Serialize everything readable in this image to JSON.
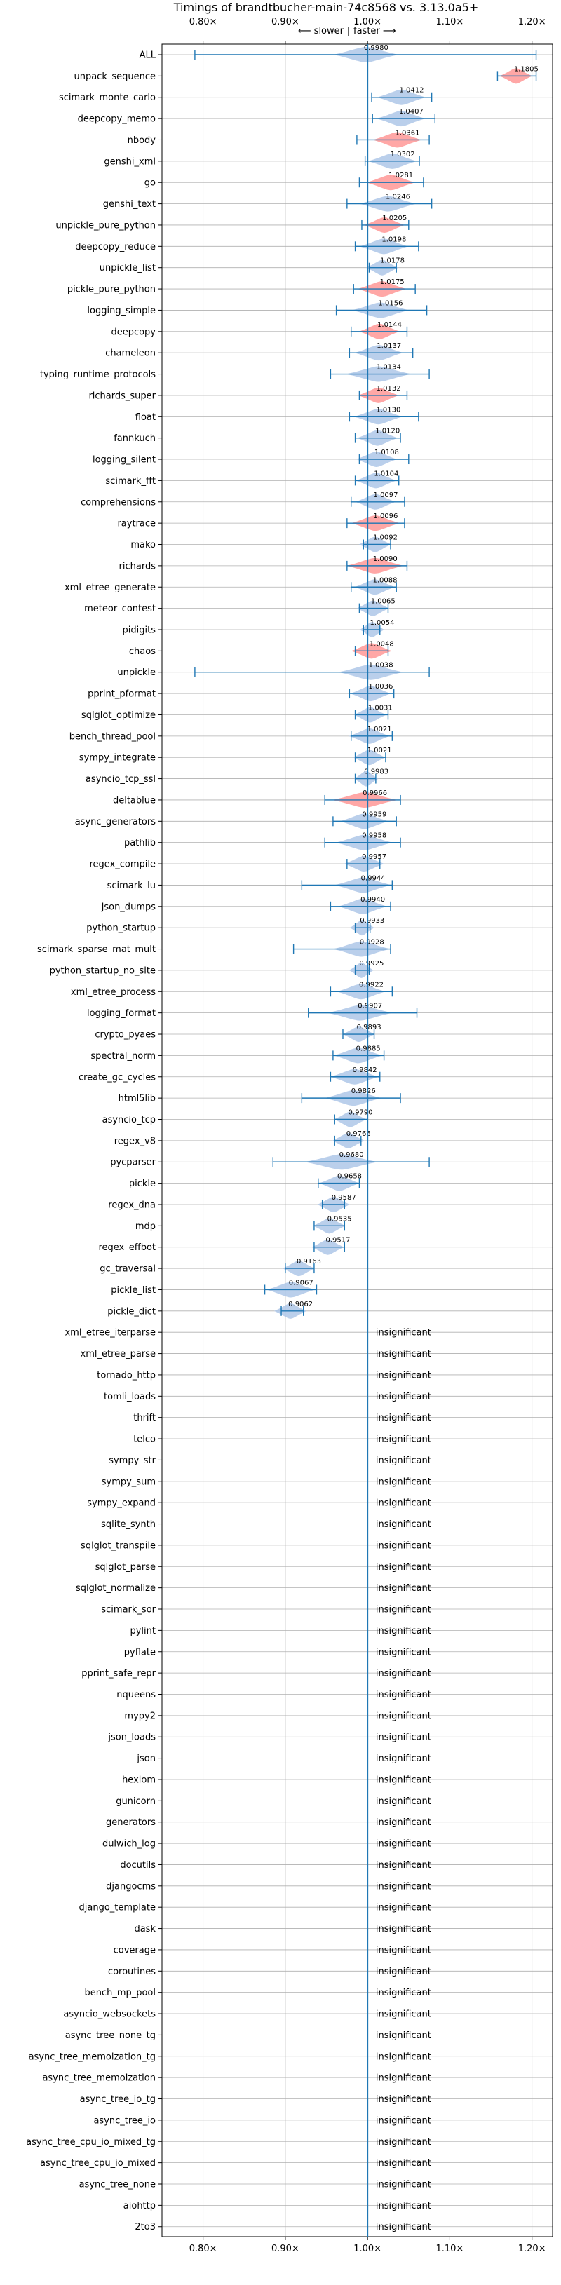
{
  "chart_data": {
    "type": "violin",
    "title": "Timings of brandtbucher-main-74c8568 vs. 3.13.0a5+",
    "direction_left": "⟵ slower",
    "direction_separator": "|",
    "direction_right": "faster ⟶",
    "xlim": [
      0.75,
      1.225
    ],
    "x_ticks": [
      0.8,
      0.9,
      1.0,
      1.1,
      1.2
    ],
    "x_tick_labels": [
      "0.80×",
      "0.90×",
      "1.00×",
      "1.10×",
      "1.20×"
    ],
    "grid": true,
    "insignificant_label": "insignificant",
    "colors": {
      "faster": "#aec7e8",
      "slower": "#ff9896",
      "line": "#1f77b4",
      "grid": "#b0b0b0"
    },
    "rows": [
      {
        "name": "ALL",
        "value": 0.998,
        "label": "0.9980",
        "err": [
          0.79,
          1.205
        ],
        "width": 0.04,
        "color": "faster"
      },
      {
        "name": "unpack_sequence",
        "value": 1.1805,
        "label": "1.1805",
        "err": [
          1.158,
          1.205
        ],
        "width": 0.02,
        "color": "slower"
      },
      {
        "name": "scimark_monte_carlo",
        "value": 1.0412,
        "label": "1.0412",
        "err": [
          1.005,
          1.078
        ],
        "width": 0.03,
        "color": "faster"
      },
      {
        "name": "deepcopy_memo",
        "value": 1.0407,
        "label": "1.0407",
        "err": [
          1.006,
          1.082
        ],
        "width": 0.03,
        "color": "faster"
      },
      {
        "name": "nbody",
        "value": 1.0361,
        "label": "1.0361",
        "err": [
          0.987,
          1.075
        ],
        "width": 0.03,
        "color": "slower"
      },
      {
        "name": "genshi_xml",
        "value": 1.0302,
        "label": "1.0302",
        "err": [
          0.997,
          1.063
        ],
        "width": 0.03,
        "color": "faster"
      },
      {
        "name": "go",
        "value": 1.0281,
        "label": "1.0281",
        "err": [
          0.99,
          1.068
        ],
        "width": 0.03,
        "color": "slower"
      },
      {
        "name": "genshi_text",
        "value": 1.0246,
        "label": "1.0246",
        "err": [
          0.975,
          1.078
        ],
        "width": 0.035,
        "color": "faster"
      },
      {
        "name": "unpickle_pure_python",
        "value": 1.0205,
        "label": "1.0205",
        "err": [
          0.993,
          1.05
        ],
        "width": 0.025,
        "color": "slower"
      },
      {
        "name": "deepcopy_reduce",
        "value": 1.0198,
        "label": "1.0198",
        "err": [
          0.985,
          1.062
        ],
        "width": 0.03,
        "color": "faster"
      },
      {
        "name": "unpickle_list",
        "value": 1.0178,
        "label": "1.0178",
        "err": [
          1.002,
          1.035
        ],
        "width": 0.02,
        "color": "faster"
      },
      {
        "name": "pickle_pure_python",
        "value": 1.0175,
        "label": "1.0175",
        "err": [
          0.983,
          1.058
        ],
        "width": 0.03,
        "color": "slower"
      },
      {
        "name": "logging_simple",
        "value": 1.0156,
        "label": "1.0156",
        "err": [
          0.962,
          1.072
        ],
        "width": 0.035,
        "color": "faster"
      },
      {
        "name": "deepcopy",
        "value": 1.0144,
        "label": "1.0144",
        "err": [
          0.98,
          1.048
        ],
        "width": 0.025,
        "color": "slower"
      },
      {
        "name": "chameleon",
        "value": 1.0137,
        "label": "1.0137",
        "err": [
          0.978,
          1.055
        ],
        "width": 0.03,
        "color": "faster"
      },
      {
        "name": "typing_runtime_protocols",
        "value": 1.0134,
        "label": "1.0134",
        "err": [
          0.955,
          1.075
        ],
        "width": 0.04,
        "color": "faster"
      },
      {
        "name": "richards_super",
        "value": 1.0132,
        "label": "1.0132",
        "err": [
          0.99,
          1.048
        ],
        "width": 0.025,
        "color": "slower"
      },
      {
        "name": "float",
        "value": 1.013,
        "label": "1.0130",
        "err": [
          0.978,
          1.062
        ],
        "width": 0.03,
        "color": "faster"
      },
      {
        "name": "fannkuch",
        "value": 1.012,
        "label": "1.0120",
        "err": [
          0.985,
          1.04
        ],
        "width": 0.025,
        "color": "faster"
      },
      {
        "name": "logging_silent",
        "value": 1.0108,
        "label": "1.0108",
        "err": [
          0.99,
          1.05
        ],
        "width": 0.025,
        "color": "faster"
      },
      {
        "name": "scimark_fft",
        "value": 1.0104,
        "label": "1.0104",
        "err": [
          0.985,
          1.038
        ],
        "width": 0.025,
        "color": "faster"
      },
      {
        "name": "comprehensions",
        "value": 1.0097,
        "label": "1.0097",
        "err": [
          0.98,
          1.045
        ],
        "width": 0.025,
        "color": "faster"
      },
      {
        "name": "raytrace",
        "value": 1.0096,
        "label": "1.0096",
        "err": [
          0.975,
          1.045
        ],
        "width": 0.03,
        "color": "slower"
      },
      {
        "name": "mako",
        "value": 1.0092,
        "label": "1.0092",
        "err": [
          0.995,
          1.028
        ],
        "width": 0.02,
        "color": "faster"
      },
      {
        "name": "richards",
        "value": 1.009,
        "label": "1.0090",
        "err": [
          0.975,
          1.048
        ],
        "width": 0.035,
        "color": "slower"
      },
      {
        "name": "xml_etree_generate",
        "value": 1.0088,
        "label": "1.0088",
        "err": [
          0.98,
          1.035
        ],
        "width": 0.025,
        "color": "faster"
      },
      {
        "name": "meteor_contest",
        "value": 1.0065,
        "label": "1.0065",
        "err": [
          0.99,
          1.025
        ],
        "width": 0.02,
        "color": "faster"
      },
      {
        "name": "pidigits",
        "value": 1.0054,
        "label": "1.0054",
        "err": [
          0.995,
          1.015
        ],
        "width": 0.015,
        "color": "faster"
      },
      {
        "name": "chaos",
        "value": 1.0048,
        "label": "1.0048",
        "err": [
          0.985,
          1.025
        ],
        "width": 0.025,
        "color": "slower"
      },
      {
        "name": "unpickle",
        "value": 1.0038,
        "label": "1.0038",
        "err": [
          0.79,
          1.075
        ],
        "width": 0.04,
        "color": "faster"
      },
      {
        "name": "pprint_pformat",
        "value": 1.0036,
        "label": "1.0036",
        "err": [
          0.978,
          1.032
        ],
        "width": 0.025,
        "color": "faster"
      },
      {
        "name": "sqlglot_optimize",
        "value": 1.0031,
        "label": "1.0031",
        "err": [
          0.985,
          1.025
        ],
        "width": 0.02,
        "color": "faster"
      },
      {
        "name": "bench_thread_pool",
        "value": 1.0021,
        "label": "1.0021",
        "err": [
          0.98,
          1.03
        ],
        "width": 0.025,
        "color": "faster"
      },
      {
        "name": "sympy_integrate",
        "value": 1.0021,
        "label": "1.0021",
        "err": [
          0.985,
          1.022
        ],
        "width": 0.02,
        "color": "faster"
      },
      {
        "name": "asyncio_tcp_ssl",
        "value": 0.9983,
        "label": "0.9983",
        "err": [
          0.985,
          1.01
        ],
        "width": 0.015,
        "color": "faster"
      },
      {
        "name": "deltablue",
        "value": 0.9966,
        "label": "0.9966",
        "err": [
          0.948,
          1.04
        ],
        "width": 0.04,
        "color": "slower"
      },
      {
        "name": "async_generators",
        "value": 0.9959,
        "label": "0.9959",
        "err": [
          0.958,
          1.035
        ],
        "width": 0.03,
        "color": "faster"
      },
      {
        "name": "pathlib",
        "value": 0.9958,
        "label": "0.9958",
        "err": [
          0.948,
          1.04
        ],
        "width": 0.035,
        "color": "faster"
      },
      {
        "name": "regex_compile",
        "value": 0.9957,
        "label": "0.9957",
        "err": [
          0.975,
          1.015
        ],
        "width": 0.025,
        "color": "faster"
      },
      {
        "name": "scimark_lu",
        "value": 0.9944,
        "label": "0.9944",
        "err": [
          0.92,
          1.03
        ],
        "width": 0.035,
        "color": "faster"
      },
      {
        "name": "json_dumps",
        "value": 0.994,
        "label": "0.9940",
        "err": [
          0.955,
          1.028
        ],
        "width": 0.03,
        "color": "faster"
      },
      {
        "name": "python_startup",
        "value": 0.9933,
        "label": "0.9933",
        "err": [
          0.985,
          1.003
        ],
        "width": 0.015,
        "color": "faster"
      },
      {
        "name": "scimark_sparse_mat_mult",
        "value": 0.9928,
        "label": "0.9928",
        "err": [
          0.91,
          1.028
        ],
        "width": 0.035,
        "color": "faster"
      },
      {
        "name": "python_startup_no_site",
        "value": 0.9925,
        "label": "0.9925",
        "err": [
          0.985,
          1.002
        ],
        "width": 0.015,
        "color": "faster"
      },
      {
        "name": "xml_etree_process",
        "value": 0.9922,
        "label": "0.9922",
        "err": [
          0.955,
          1.03
        ],
        "width": 0.03,
        "color": "faster"
      },
      {
        "name": "logging_format",
        "value": 0.9907,
        "label": "0.9907",
        "err": [
          0.928,
          1.06
        ],
        "width": 0.04,
        "color": "faster"
      },
      {
        "name": "crypto_pyaes",
        "value": 0.9893,
        "label": "0.9893",
        "err": [
          0.97,
          1.008
        ],
        "width": 0.02,
        "color": "faster"
      },
      {
        "name": "spectral_norm",
        "value": 0.9885,
        "label": "0.9885",
        "err": [
          0.958,
          1.02
        ],
        "width": 0.03,
        "color": "faster"
      },
      {
        "name": "create_gc_cycles",
        "value": 0.9842,
        "label": "0.9842",
        "err": [
          0.955,
          1.015
        ],
        "width": 0.03,
        "color": "faster"
      },
      {
        "name": "html5lib",
        "value": 0.9826,
        "label": "0.9826",
        "err": [
          0.92,
          1.04
        ],
        "width": 0.035,
        "color": "faster"
      },
      {
        "name": "asyncio_tcp",
        "value": 0.979,
        "label": "0.9790",
        "err": [
          0.96,
          1.0
        ],
        "width": 0.02,
        "color": "faster"
      },
      {
        "name": "regex_v8",
        "value": 0.9766,
        "label": "0.9766",
        "err": [
          0.96,
          0.992
        ],
        "width": 0.02,
        "color": "faster"
      },
      {
        "name": "pycparser",
        "value": 0.968,
        "label": "0.9680",
        "err": [
          0.885,
          1.075
        ],
        "width": 0.045,
        "color": "faster"
      },
      {
        "name": "pickle",
        "value": 0.9658,
        "label": "0.9658",
        "err": [
          0.94,
          0.99
        ],
        "width": 0.025,
        "color": "faster"
      },
      {
        "name": "regex_dna",
        "value": 0.9587,
        "label": "0.9587",
        "err": [
          0.945,
          0.972
        ],
        "width": 0.02,
        "color": "faster"
      },
      {
        "name": "mdp",
        "value": 0.9535,
        "label": "0.9535",
        "err": [
          0.935,
          0.972
        ],
        "width": 0.02,
        "color": "faster"
      },
      {
        "name": "regex_effbot",
        "value": 0.9517,
        "label": "0.9517",
        "err": [
          0.935,
          0.972
        ],
        "width": 0.02,
        "color": "faster"
      },
      {
        "name": "gc_traversal",
        "value": 0.9163,
        "label": "0.9163",
        "err": [
          0.9,
          0.935
        ],
        "width": 0.02,
        "color": "faster"
      },
      {
        "name": "pickle_list",
        "value": 0.9067,
        "label": "0.9067",
        "err": [
          0.875,
          0.938
        ],
        "width": 0.03,
        "color": "faster"
      },
      {
        "name": "pickle_dict",
        "value": 0.9062,
        "label": "0.9062",
        "err": [
          0.895,
          0.922
        ],
        "width": 0.02,
        "color": "faster"
      },
      {
        "name": "xml_etree_iterparse",
        "insignificant": true
      },
      {
        "name": "xml_etree_parse",
        "insignificant": true
      },
      {
        "name": "tornado_http",
        "insignificant": true
      },
      {
        "name": "tomli_loads",
        "insignificant": true
      },
      {
        "name": "thrift",
        "insignificant": true
      },
      {
        "name": "telco",
        "insignificant": true
      },
      {
        "name": "sympy_str",
        "insignificant": true
      },
      {
        "name": "sympy_sum",
        "insignificant": true
      },
      {
        "name": "sympy_expand",
        "insignificant": true
      },
      {
        "name": "sqlite_synth",
        "insignificant": true
      },
      {
        "name": "sqlglot_transpile",
        "insignificant": true
      },
      {
        "name": "sqlglot_parse",
        "insignificant": true
      },
      {
        "name": "sqlglot_normalize",
        "insignificant": true
      },
      {
        "name": "scimark_sor",
        "insignificant": true
      },
      {
        "name": "pylint",
        "insignificant": true
      },
      {
        "name": "pyflate",
        "insignificant": true
      },
      {
        "name": "pprint_safe_repr",
        "insignificant": true
      },
      {
        "name": "nqueens",
        "insignificant": true
      },
      {
        "name": "mypy2",
        "insignificant": true
      },
      {
        "name": "json_loads",
        "insignificant": true
      },
      {
        "name": "json",
        "insignificant": true
      },
      {
        "name": "hexiom",
        "insignificant": true
      },
      {
        "name": "gunicorn",
        "insignificant": true
      },
      {
        "name": "generators",
        "insignificant": true
      },
      {
        "name": "dulwich_log",
        "insignificant": true
      },
      {
        "name": "docutils",
        "insignificant": true
      },
      {
        "name": "djangocms",
        "insignificant": true
      },
      {
        "name": "django_template",
        "insignificant": true
      },
      {
        "name": "dask",
        "insignificant": true
      },
      {
        "name": "coverage",
        "insignificant": true
      },
      {
        "name": "coroutines",
        "insignificant": true
      },
      {
        "name": "bench_mp_pool",
        "insignificant": true
      },
      {
        "name": "asyncio_websockets",
        "insignificant": true
      },
      {
        "name": "async_tree_none_tg",
        "insignificant": true
      },
      {
        "name": "async_tree_memoization_tg",
        "insignificant": true
      },
      {
        "name": "async_tree_memoization",
        "insignificant": true
      },
      {
        "name": "async_tree_io_tg",
        "insignificant": true
      },
      {
        "name": "async_tree_io",
        "insignificant": true
      },
      {
        "name": "async_tree_cpu_io_mixed_tg",
        "insignificant": true
      },
      {
        "name": "async_tree_cpu_io_mixed",
        "insignificant": true
      },
      {
        "name": "async_tree_none",
        "insignificant": true
      },
      {
        "name": "aiohttp",
        "insignificant": true
      },
      {
        "name": "2to3",
        "insignificant": true
      }
    ]
  }
}
